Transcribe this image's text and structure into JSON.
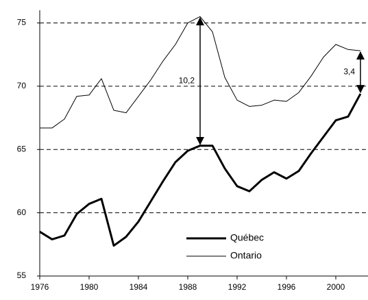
{
  "chart_data": {
    "type": "line",
    "x": [
      1976,
      1977,
      1978,
      1979,
      1980,
      1981,
      1982,
      1983,
      1984,
      1985,
      1986,
      1987,
      1988,
      1989,
      1990,
      1991,
      1992,
      1993,
      1994,
      1995,
      1996,
      1997,
      1998,
      1999,
      2000,
      2001,
      2002
    ],
    "series": [
      {
        "name": "Québec",
        "color": "#000000",
        "width": 3,
        "values": [
          58.5,
          57.9,
          58.2,
          59.9,
          60.7,
          61.1,
          57.4,
          58.1,
          59.3,
          60.9,
          62.5,
          64.0,
          64.9,
          65.3,
          65.3,
          63.5,
          62.1,
          61.7,
          62.6,
          63.2,
          62.7,
          63.3,
          64.7,
          66.0,
          67.3,
          67.6,
          69.4
        ]
      },
      {
        "name": "Ontario",
        "color": "#000000",
        "width": 1,
        "values": [
          66.7,
          66.7,
          67.4,
          69.2,
          69.3,
          70.6,
          68.1,
          67.9,
          69.2,
          70.5,
          72.0,
          73.3,
          75.0,
          75.5,
          74.3,
          70.7,
          68.9,
          68.4,
          68.5,
          68.9,
          68.8,
          69.5,
          70.8,
          72.3,
          73.3,
          72.9,
          72.8
        ]
      }
    ],
    "xlim": [
      1976,
      2002
    ],
    "xticks": [
      1976,
      1980,
      1984,
      1988,
      1992,
      1996,
      2000
    ],
    "ylim": [
      55,
      76
    ],
    "yticks": [
      55,
      60,
      65,
      70,
      75
    ],
    "grid": true,
    "legend": "lower center",
    "annotations": [
      {
        "text": "10,2",
        "x": 1989
      },
      {
        "text": "3,4",
        "x": 2002
      }
    ]
  }
}
